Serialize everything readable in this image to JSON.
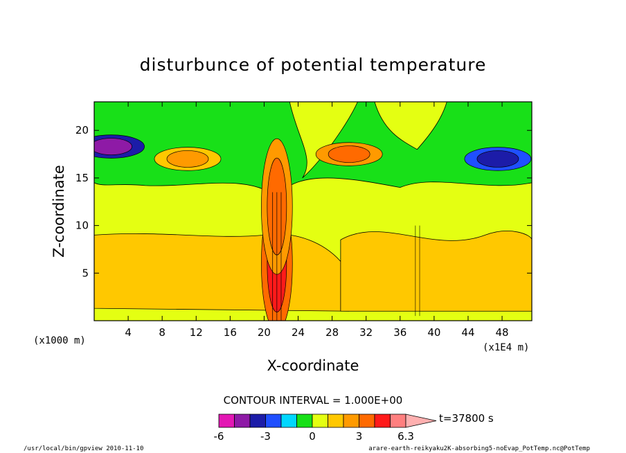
{
  "chart_data": {
    "type": "heatmap",
    "title": "disturbunce of potential temperature",
    "xlabel": "X-coordinate",
    "ylabel": "Z-coordinate",
    "x_unit": "(x1000 m)",
    "x_multiplier": "(x1E4 m)",
    "xlim": [
      0,
      51.5
    ],
    "ylim": [
      0,
      23
    ],
    "x_ticks": [
      "4",
      "8",
      "12",
      "16",
      "20",
      "24",
      "28",
      "32",
      "36",
      "40",
      "44",
      "48"
    ],
    "y_ticks": [
      "5",
      "10",
      "15",
      "20"
    ],
    "contour_interval_label": "CONTOUR INTERVAL = 1.000E+00",
    "time_label": "t=37800 s",
    "colorbar": {
      "levels": [
        -6,
        -5,
        -4,
        -3,
        -2,
        -1,
        0,
        1,
        2,
        3,
        4,
        5,
        6.3
      ],
      "tick_labels": [
        "-6",
        "-3",
        "0",
        "3",
        "6.3"
      ],
      "colors": [
        "#e317b4",
        "#8e1aa6",
        "#1c1ca8",
        "#1f4fff",
        "#00d7ff",
        "#18e018",
        "#e4ff12",
        "#ffc800",
        "#ff9a00",
        "#ff6a00",
        "#ff1a1a",
        "#ff7f7f",
        "#ffb0b0"
      ]
    },
    "field_features": [
      {
        "x": 21.5,
        "z": 6,
        "value": 4
      },
      {
        "x": 21.5,
        "z": 12,
        "value": 3
      },
      {
        "x": 2,
        "z": 18.3,
        "value": -5
      },
      {
        "x": 47.5,
        "z": 17,
        "value": -4
      },
      {
        "x": 30,
        "z": 17.5,
        "value": 3
      },
      {
        "x": 11,
        "z": 17,
        "value": 2
      }
    ]
  },
  "footer": {
    "left": "/usr/local/bin/gpview  2010-11-10",
    "right": "arare-earth-reikyaku2K-absorbing5-noEvap_PotTemp.nc@PotTemp"
  }
}
